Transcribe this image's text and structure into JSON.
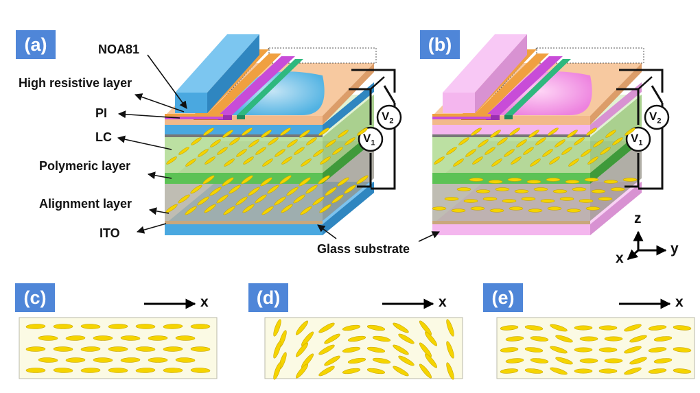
{
  "panels": {
    "a": "(a)",
    "b": "(b)",
    "c": "(c)",
    "d": "(d)",
    "e": "(e)"
  },
  "labels": {
    "noa81": "NOA81",
    "high_resistive_layer": "High resistive layer",
    "pi": "PI",
    "lc": "LC",
    "polymeric_layer": "Polymeric layer",
    "alignment_layer": "Alignment layer",
    "ito": "ITO",
    "glass_substrate": "Glass substrate"
  },
  "voltages": {
    "v1_base": "V",
    "v1_sub": "1",
    "v2_base": "V",
    "v2_sub": "2"
  },
  "axes": {
    "z": "z",
    "y": "y",
    "x": "x"
  },
  "colors": {
    "glass_a": "#4aa8e0",
    "glass_b": "#f4b6ee",
    "lc_green": "#9fd27a",
    "polymer": "#5cc255",
    "lc_grey": "#aaa79a",
    "noa": "#f7c9a0",
    "orange": "#f0a040",
    "magenta": "#c84cd8",
    "teal": "#2fb87e",
    "lc_molecule": "#f5d400",
    "badge": "#4f86d8"
  }
}
